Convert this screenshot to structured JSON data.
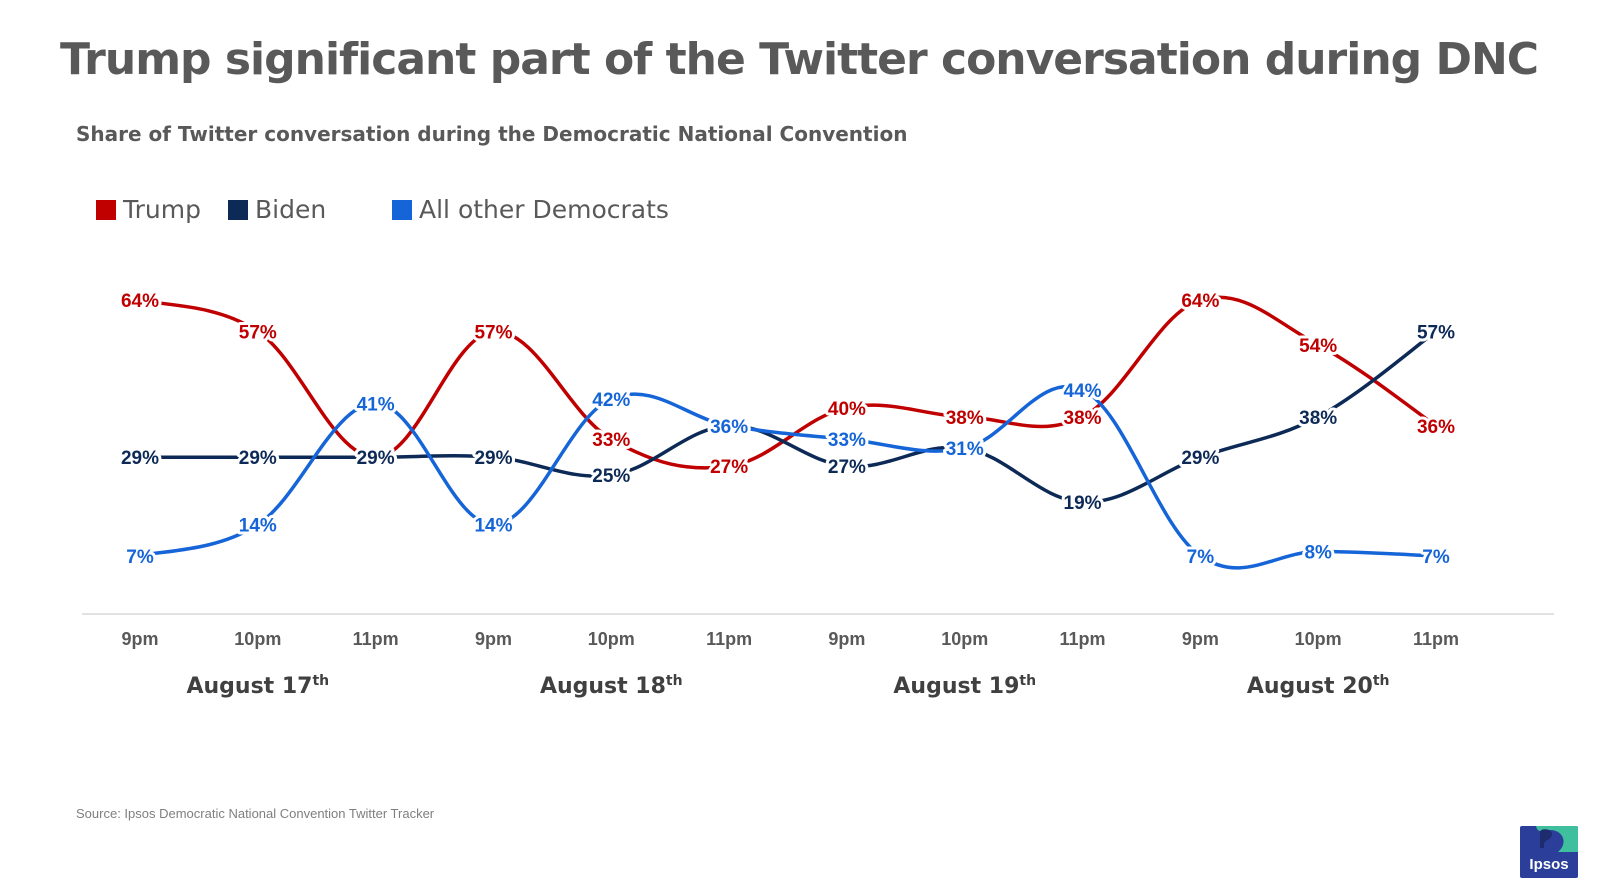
{
  "title": "Trump significant part of the Twitter conversation during DNC",
  "subtitle": "Share of Twitter conversation during the Democratic National Convention",
  "source": "Source: Ipsos Democratic National Convention Twitter Tracker",
  "logo": {
    "text": "Ipsos"
  },
  "colors": {
    "trump": "#c00000",
    "biden": "#0d2a57",
    "others": "#1565d8",
    "text_gray": "#595959",
    "axis": "#d9d9d9"
  },
  "chart_data": {
    "type": "line",
    "categories": [
      "9pm",
      "10pm",
      "11pm",
      "9pm",
      "10pm",
      "11pm",
      "9pm",
      "10pm",
      "11pm",
      "9pm",
      "10pm",
      "11pm"
    ],
    "groups": [
      {
        "label": "August 17",
        "sup": "th"
      },
      {
        "label": "August 18",
        "sup": "th"
      },
      {
        "label": "August 19",
        "sup": "th"
      },
      {
        "label": "August 20",
        "sup": "th"
      }
    ],
    "legend_position": "top-left",
    "grid": false,
    "ylim": [
      0,
      70
    ],
    "value_suffix": "%",
    "series": [
      {
        "name": "Trump",
        "color": "#c00000",
        "values": [
          64,
          57,
          29,
          57,
          33,
          27,
          40,
          38,
          38,
          64,
          54,
          36
        ]
      },
      {
        "name": "Biden",
        "color": "#0d2a57",
        "values": [
          29,
          29,
          29,
          29,
          25,
          36,
          27,
          31,
          19,
          29,
          38,
          57
        ]
      },
      {
        "name": "All other Democrats",
        "color": "#1565d8",
        "values": [
          7,
          14,
          41,
          14,
          42,
          36,
          33,
          31,
          44,
          7,
          8,
          7
        ]
      }
    ]
  }
}
